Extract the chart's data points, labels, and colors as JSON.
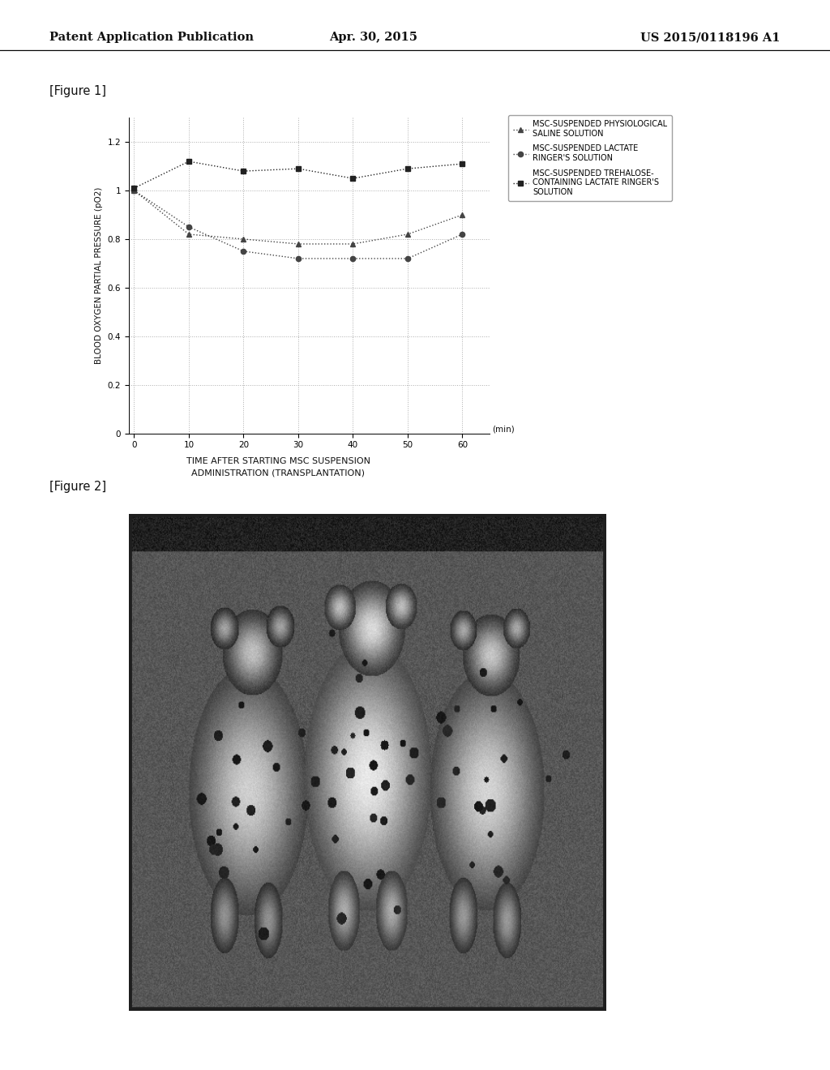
{
  "header_left": "Patent Application Publication",
  "header_center": "Apr. 30, 2015",
  "header_right": "US 2015/0118196 A1",
  "figure1_label": "[Figure 1]",
  "figure2_label": "[Figure 2]",
  "xlabel_line1": "TIME AFTER STARTING MSC SUSPENSION",
  "xlabel_line2": "ADMINISTRATION (TRANSPLANTATION)",
  "xlabel_unit": "(min)",
  "ylabel": "BLOOD OXYGEN PARTIAL PRESSURE (pO2)",
  "x_ticks": [
    0,
    10,
    20,
    30,
    40,
    50,
    60
  ],
  "ylim": [
    0,
    1.3
  ],
  "yticks": [
    0,
    0.2,
    0.4,
    0.6,
    0.8,
    1.0,
    1.2
  ],
  "series": {
    "saline": {
      "x": [
        0,
        10,
        20,
        30,
        40,
        50,
        60
      ],
      "y": [
        1.0,
        0.82,
        0.8,
        0.78,
        0.78,
        0.82,
        0.9
      ],
      "label": "MSC-SUSPENDED PHYSIOLOGICAL\nSALINE SOLUTION",
      "marker": "^",
      "color": "#444444"
    },
    "lactate": {
      "x": [
        0,
        10,
        20,
        30,
        40,
        50,
        60
      ],
      "y": [
        1.0,
        0.85,
        0.75,
        0.72,
        0.72,
        0.72,
        0.82
      ],
      "label": "MSC-SUSPENDED LACTATE\nRINGER'S SOLUTION",
      "marker": "o",
      "color": "#444444"
    },
    "trehalose": {
      "x": [
        0,
        10,
        20,
        30,
        40,
        50,
        60
      ],
      "y": [
        1.01,
        1.12,
        1.08,
        1.09,
        1.05,
        1.09,
        1.11
      ],
      "label": "MSC-SUSPENDED TREHALOSE-\nCONTAINING LACTATE RINGER'S\nSOLUTION",
      "marker": "s",
      "color": "#222222"
    }
  },
  "background_color": "#ffffff",
  "grid_color": "#999999",
  "text_color": "#111111"
}
